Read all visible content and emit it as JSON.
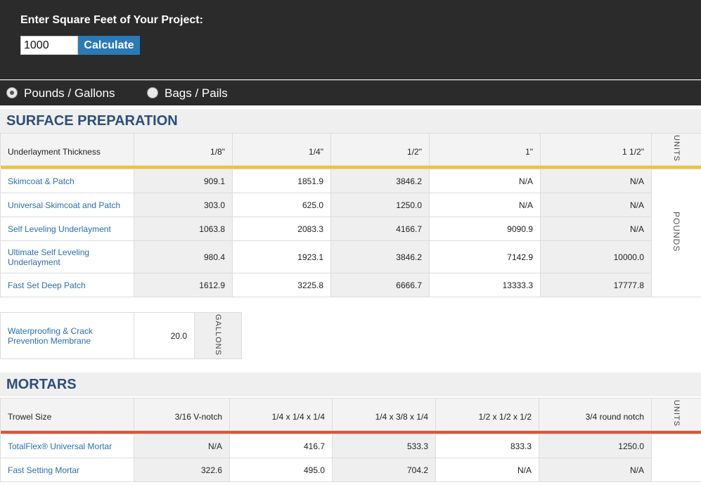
{
  "calculator": {
    "label": "Enter Square Feet of Your Project:",
    "input_value": "1000",
    "button_label": "Calculate"
  },
  "units_toggle": {
    "options": [
      "Pounds / Gallons",
      "Bags / Pails"
    ],
    "selected": "Pounds / Gallons"
  },
  "surface_prep": {
    "title": "SURFACE PREPARATION",
    "header": [
      "Underlayment Thickness",
      "1/8\"",
      "1/4\"",
      "1/2\"",
      "1\"",
      "1 1/2\""
    ],
    "units_header": "UNITS",
    "units_value": "POUNDS",
    "rows": [
      {
        "name": "Skimcoat & Patch",
        "values": [
          "909.1",
          "1851.9",
          "3846.2",
          "N/A",
          "N/A"
        ]
      },
      {
        "name": "Universal Skimcoat and Patch",
        "values": [
          "303.0",
          "625.0",
          "1250.0",
          "N/A",
          "N/A"
        ]
      },
      {
        "name": "Self Leveling Underlayment",
        "values": [
          "1063.8",
          "2083.3",
          "4166.7",
          "9090.9",
          "N/A"
        ]
      },
      {
        "name": "Ultimate Self Leveling Underlayment",
        "values": [
          "980.4",
          "1923.1",
          "3846.2",
          "7142.9",
          "10000.0"
        ]
      },
      {
        "name": "Fast Set Deep Patch",
        "values": [
          "1612.9",
          "3225.8",
          "6666.7",
          "13333.3",
          "17777.8"
        ]
      }
    ],
    "membrane": {
      "name": "Waterproofing & Crack Prevention Membrane",
      "value": "20.0",
      "unit": "GALLONS"
    }
  },
  "mortars": {
    "title": "MORTARS",
    "header": [
      "Trowel Size",
      "3/16 V-notch",
      "1/4 x 1/4 x 1/4",
      "1/4 x 3/8 x 1/4",
      "1/2 x 1/2 x 1/2",
      "3/4 round notch"
    ],
    "units_header": "UNITS",
    "rows": [
      {
        "name": "TotalFlex® Universal Mortar",
        "values": [
          "N/A",
          "416.7",
          "533.3",
          "833.3",
          "1250.0"
        ]
      },
      {
        "name": "Fast Setting Mortar",
        "values": [
          "322.6",
          "495.0",
          "704.2",
          "N/A",
          "N/A"
        ]
      }
    ]
  },
  "colors": {
    "header_bg": "#2b2b2b",
    "button": "#2a7ab5",
    "title": "#2d4d7c",
    "surface_accent": "#f4c12f",
    "mortar_accent": "#e0533e",
    "link": "#2a6fb0"
  }
}
